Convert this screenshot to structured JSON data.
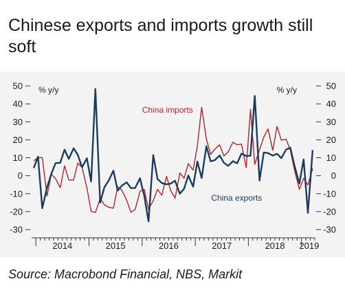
{
  "title": "Chinese exports and imports growth still soft",
  "source": "Source: Macrobond Financial, NBS, Markit",
  "colors": {
    "panel": "#f3f3f4",
    "exports": "#1c3a5e",
    "imports": "#b3242a",
    "axis": "#333333"
  },
  "chart_data": {
    "type": "line",
    "ylabel_left": "% y/y",
    "ylabel_right": "% y/y",
    "ylim": [
      -30,
      50
    ],
    "yticks": [
      -30,
      -20,
      -10,
      0,
      10,
      20,
      30,
      40,
      50
    ],
    "ytick_labels": [
      "-30",
      "-20",
      "-10",
      "0",
      "10",
      "20",
      "30",
      "40",
      "50"
    ],
    "xlim": [
      2013.92,
      2019.25
    ],
    "year_labels": [
      "2014",
      "2015",
      "2016",
      "2017",
      "2018",
      "2019"
    ],
    "grid": false,
    "series": [
      {
        "name": "China exports",
        "color": "#1c3a5e",
        "x": [
          2013.96,
          2014.04,
          2014.12,
          2014.21,
          2014.29,
          2014.37,
          2014.46,
          2014.54,
          2014.62,
          2014.71,
          2014.79,
          2014.87,
          2014.96,
          2015.04,
          2015.12,
          2015.21,
          2015.29,
          2015.37,
          2015.46,
          2015.54,
          2015.62,
          2015.71,
          2015.79,
          2015.87,
          2015.96,
          2016.04,
          2016.12,
          2016.21,
          2016.29,
          2016.37,
          2016.46,
          2016.54,
          2016.62,
          2016.71,
          2016.79,
          2016.87,
          2016.96,
          2017.04,
          2017.12,
          2017.21,
          2017.29,
          2017.37,
          2017.46,
          2017.54,
          2017.62,
          2017.71,
          2017.79,
          2017.87,
          2017.96,
          2018.04,
          2018.12,
          2018.21,
          2018.29,
          2018.37,
          2018.46,
          2018.54,
          2018.62,
          2018.71,
          2018.79,
          2018.87,
          2018.96,
          2019.04,
          2019.12,
          2019.21
        ],
        "values": [
          4.3,
          10.6,
          -18.1,
          -6.6,
          0.9,
          7.0,
          7.2,
          14.5,
          9.4,
          15.3,
          11.6,
          4.7,
          9.7,
          -3.3,
          48.3,
          -15.0,
          -6.4,
          -2.8,
          2.8,
          -8.3,
          -5.5,
          -3.7,
          -6.9,
          -6.8,
          -1.4,
          -11.2,
          -25.4,
          11.5,
          -1.8,
          -4.1,
          -4.8,
          -4.4,
          -2.8,
          -10.0,
          -7.3,
          0.1,
          -6.1,
          7.9,
          -1.3,
          16.4,
          8.0,
          8.7,
          11.3,
          7.2,
          5.5,
          8.1,
          6.9,
          12.3,
          10.9,
          11.1,
          44.5,
          -2.7,
          12.9,
          12.6,
          11.2,
          12.2,
          9.8,
          14.5,
          15.6,
          5.4,
          -4.4,
          9.1,
          -20.7,
          14.2
        ]
      },
      {
        "name": "China imports",
        "color": "#b3242a",
        "x": [
          2013.96,
          2014.04,
          2014.12,
          2014.21,
          2014.29,
          2014.37,
          2014.46,
          2014.54,
          2014.62,
          2014.71,
          2014.79,
          2014.87,
          2014.96,
          2015.04,
          2015.12,
          2015.21,
          2015.29,
          2015.37,
          2015.46,
          2015.54,
          2015.62,
          2015.71,
          2015.79,
          2015.87,
          2015.96,
          2016.04,
          2016.12,
          2016.21,
          2016.29,
          2016.37,
          2016.46,
          2016.54,
          2016.62,
          2016.71,
          2016.79,
          2016.87,
          2016.96,
          2017.04,
          2017.12,
          2017.21,
          2017.29,
          2017.37,
          2017.46,
          2017.54,
          2017.62,
          2017.71,
          2017.79,
          2017.87,
          2017.96,
          2018.04,
          2018.12,
          2018.21,
          2018.29,
          2018.37,
          2018.46,
          2018.54,
          2018.62,
          2018.71,
          2018.79,
          2018.87,
          2018.96,
          2019.04,
          2019.12,
          2019.21
        ],
        "values": [
          8.3,
          10.0,
          10.1,
          -11.3,
          0.8,
          -1.6,
          -6.7,
          5.5,
          -2.4,
          -2.4,
          7.0,
          4.6,
          -6.7,
          -19.9,
          -20.5,
          -12.7,
          -16.2,
          -17.6,
          -18.1,
          -6.1,
          -8.1,
          -13.8,
          -20.4,
          -18.8,
          -8.7,
          -7.6,
          -18.8,
          -13.8,
          -7.6,
          -10.9,
          -0.4,
          -8.4,
          -12.5,
          1.5,
          -1.4,
          6.7,
          3.1,
          16.7,
          38.1,
          20.3,
          11.9,
          14.8,
          17.2,
          11.0,
          13.3,
          18.7,
          17.2,
          17.7,
          4.5,
          36.9,
          6.3,
          14.4,
          21.5,
          26.0,
          14.1,
          27.5,
          19.8,
          20.3,
          14.3,
          3.0,
          -7.6,
          -1.5,
          -5.2,
          4.0
        ]
      }
    ],
    "annotations": [
      {
        "text": "China imports",
        "x": 2016.0,
        "y": 35,
        "series": "China imports"
      },
      {
        "text": "China exports",
        "x": 2017.3,
        "y": -14,
        "series": "China exports"
      }
    ]
  }
}
